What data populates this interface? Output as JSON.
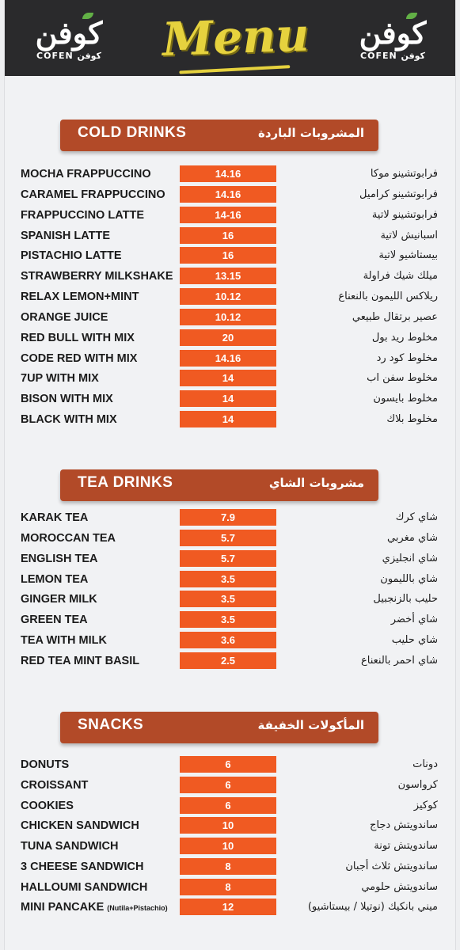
{
  "header": {
    "title": "Menu",
    "brand_ar": "كوفن",
    "brand_sub": "COFEN كوفن"
  },
  "sections": [
    {
      "en": "COLD DRINKS",
      "ar": "المشروبات الباردة",
      "items": [
        {
          "en": "MOCHA FRAPPUCCINO",
          "price": "14.16",
          "ar": "فرابوتشينو موكا"
        },
        {
          "en": "CARAMEL FRAPPUCCINO",
          "price": "14.16",
          "ar": "فرابوتشينو كراميل"
        },
        {
          "en": "FRAPPUCCINO LATTE",
          "price": "14-16",
          "ar": "فرابوتشينو لاتية"
        },
        {
          "en": "SPANISH LATTE",
          "price": "16",
          "ar": "اسبانيش لاتية"
        },
        {
          "en": "PISTACHIO LATTE",
          "price": "16",
          "ar": "بيستاشيو لاتية"
        },
        {
          "en": "STRAWBERRY MILKSHAKE",
          "price": "13.15",
          "ar": "ميلك شيك فراولة"
        },
        {
          "en": "RELAX LEMON+MINT",
          "price": "10.12",
          "ar": "ريلاكس الليمون بالنعناع"
        },
        {
          "en": "ORANGE JUICE",
          "price": "10.12",
          "ar": "عصير برتقال طبيعي"
        },
        {
          "en": "RED BULL WITH MIX",
          "price": "20",
          "ar": "مخلوط ريد بول"
        },
        {
          "en": "CODE RED WITH MIX",
          "price": "14.16",
          "ar": "مخلوط كود رد"
        },
        {
          "en": "7UP WITH MIX",
          "price": "14",
          "ar": "مخلوط سفن اب"
        },
        {
          "en": "BISON WITH MIX",
          "price": "14",
          "ar": "مخلوط بايسون"
        },
        {
          "en": "BLACK WITH MIX",
          "price": "14",
          "ar": "مخلوط بلاك"
        }
      ]
    },
    {
      "en": "TEA DRINKS",
      "ar": "مشروبات الشاي",
      "items": [
        {
          "en": "KARAK TEA",
          "price": "7.9",
          "ar": "شاي كرك"
        },
        {
          "en": "MOROCCAN TEA",
          "price": "5.7",
          "ar": "شاي مغربي"
        },
        {
          "en": "ENGLISH TEA",
          "price": "5.7",
          "ar": "شاي انجليزي"
        },
        {
          "en": "LEMON TEA",
          "price": "3.5",
          "ar": "شاي بالليمون"
        },
        {
          "en": "GINGER MILK",
          "price": "3.5",
          "ar": "حليب بالزنجبيل"
        },
        {
          "en": "GREEN TEA",
          "price": "3.5",
          "ar": "شاي أخضر"
        },
        {
          "en": "TEA WITH MILK",
          "price": "3.6",
          "ar": "شاي حليب"
        },
        {
          "en": "RED TEA MINT BASIL",
          "price": "2.5",
          "ar": "شاي احمر بالنعناع"
        }
      ]
    },
    {
      "en": "SNACKS",
      "ar": "المأكولات الخفيفة",
      "items": [
        {
          "en": "DONUTS",
          "price": "6",
          "ar": "دونات"
        },
        {
          "en": "CROISSANT",
          "price": "6",
          "ar": "كرواسون"
        },
        {
          "en": "COOKIES",
          "price": "6",
          "ar": "كوكيز"
        },
        {
          "en": "CHICKEN SANDWICH",
          "price": "10",
          "ar": "ساندويتش دجاج"
        },
        {
          "en": "TUNA SANDWICH",
          "price": "10",
          "ar": "ساندويتش تونة"
        },
        {
          "en": "3 CHEESE SANDWICH",
          "price": "8",
          "ar": "ساندويتش ثلاث أجبان"
        },
        {
          "en": "HALLOUMI SANDWICH",
          "price": "8",
          "ar": "ساندويتش حلومي"
        },
        {
          "en": "MINI PANCAKE",
          "note": "(Nutila+Pistachio)",
          "price": "12",
          "ar": "ميني بانكيك (نوتيلا / بيستاشيو)"
        }
      ]
    }
  ],
  "colors": {
    "header_bg": "#2a2a2c",
    "title": "#e6d23e",
    "banner": "#b24a28",
    "price_bg": "#f05a22",
    "brand_green": "#62b046"
  }
}
